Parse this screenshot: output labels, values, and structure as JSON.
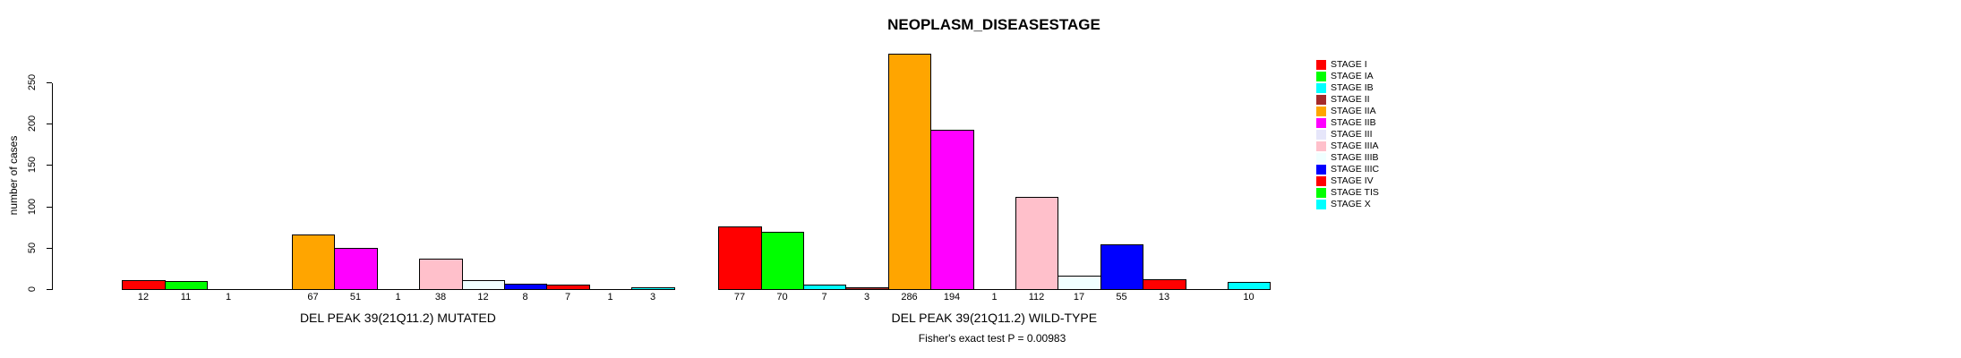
{
  "chart_data": {
    "type": "bar",
    "title": "NEOPLASM_DISEASESTAGE",
    "ylabel": "number of cases",
    "yticks": [
      0,
      50,
      100,
      150,
      200,
      250
    ],
    "ylim": [
      0,
      250
    ],
    "grid": false,
    "legend_position": "right",
    "categories": [
      "STAGE I",
      "STAGE IA",
      "STAGE IB",
      "STAGE II",
      "STAGE IIA",
      "STAGE IIB",
      "STAGE III",
      "STAGE IIIA",
      "STAGE IIIB",
      "STAGE IIIC",
      "STAGE IV",
      "STAGE TIS",
      "STAGE X"
    ],
    "category_colors": [
      "#FF0000",
      "#00FF00",
      "#00FFFF",
      "#A52A2A",
      "#FFA500",
      "#FF00FF",
      "#E6E6FA",
      "#FFC0CB",
      "#F0FFFF",
      "#0000FF",
      "#FF0000",
      "#00FF00",
      "#00FFFF"
    ],
    "series": [
      {
        "name": "DEL PEAK 39(21Q11.2) MUTATED",
        "values": [
          12,
          11,
          1,
          0,
          67,
          51,
          1,
          38,
          12,
          8,
          7,
          1,
          3
        ]
      },
      {
        "name": "DEL PEAK 39(21Q11.2) WILD-TYPE",
        "values": [
          77,
          70,
          7,
          3,
          286,
          194,
          1,
          112,
          17,
          55,
          13,
          0,
          10
        ]
      }
    ],
    "annotation": "Fisher's exact test P = 0.00983"
  }
}
